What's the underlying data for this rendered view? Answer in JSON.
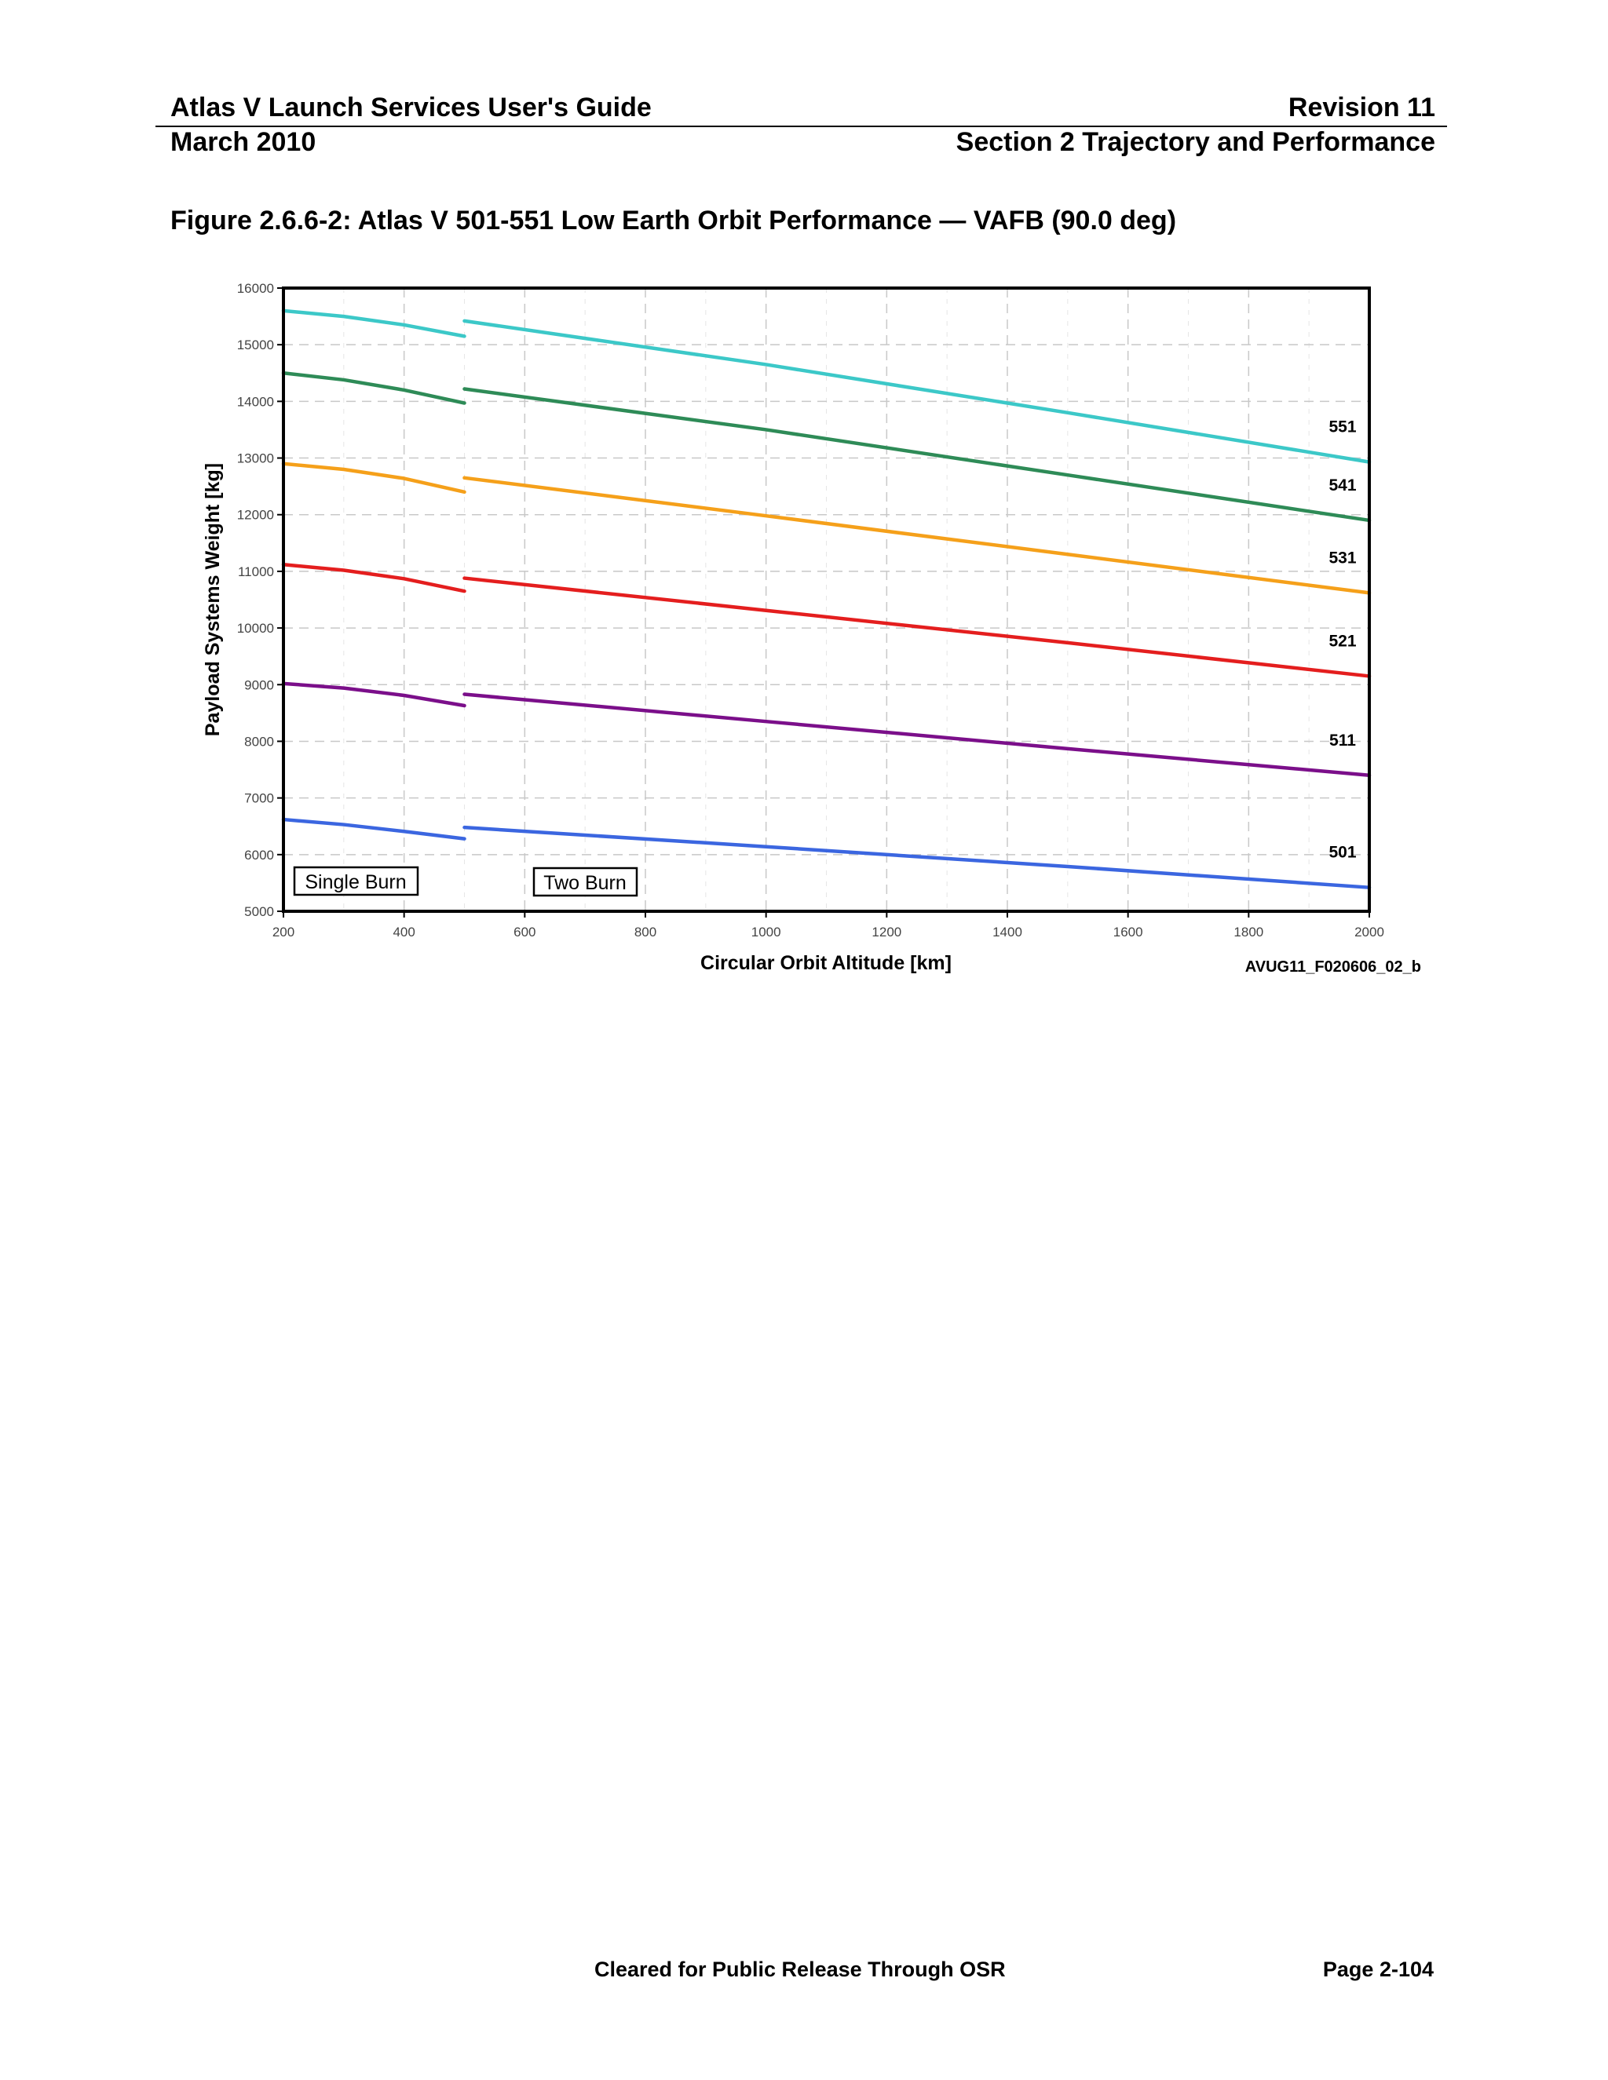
{
  "header": {
    "doc_title": "Atlas V Launch Services User's Guide",
    "revision": "Revision 11",
    "date": "March 2010",
    "section": "Section 2 Trajectory and Performance"
  },
  "figure": {
    "title": "Figure 2.6.6-2: Atlas V 501-551 Low Earth Orbit Performance — VAFB (90.0 deg)",
    "id": "AVUG11_F020606_02_b"
  },
  "footer": {
    "release": "Cleared for Public Release Through OSR",
    "page": "Page 2-104"
  },
  "chart_data": {
    "type": "line",
    "title": "",
    "xlabel": "Circular Orbit Altitude [km]",
    "ylabel": "Payload Systems Weight [kg]",
    "xlim": [
      200,
      2000
    ],
    "ylim": [
      5000,
      16000
    ],
    "xticks": [
      200,
      400,
      600,
      800,
      1000,
      1200,
      1400,
      1600,
      1800,
      2000
    ],
    "yticks": [
      5000,
      6000,
      7000,
      8000,
      9000,
      10000,
      11000,
      12000,
      13000,
      14000,
      15000,
      16000
    ],
    "grid": true,
    "annotations": [
      "Single Burn",
      "Two Burn"
    ],
    "series": [
      {
        "name": "551",
        "color": "#3cc8c8",
        "segments": [
          {
            "x": [
              200,
              300,
              400,
              500
            ],
            "y": [
              15600,
              15500,
              15350,
              15150
            ]
          },
          {
            "x": [
              500,
              1000,
              1500,
              2000
            ],
            "y": [
              15420,
              14650,
              13800,
              12930
            ]
          }
        ]
      },
      {
        "name": "541",
        "color": "#2e8b57",
        "segments": [
          {
            "x": [
              200,
              300,
              400,
              500
            ],
            "y": [
              14500,
              14380,
              14200,
              13970
            ]
          },
          {
            "x": [
              500,
              1000,
              1500,
              2000
            ],
            "y": [
              14220,
              13500,
              12700,
              11900
            ]
          }
        ]
      },
      {
        "name": "531",
        "color": "#f5a01a",
        "segments": [
          {
            "x": [
              200,
              300,
              400,
              500
            ],
            "y": [
              12900,
              12800,
              12640,
              12400
            ]
          },
          {
            "x": [
              500,
              1000,
              1500,
              2000
            ],
            "y": [
              12650,
              11980,
              11300,
              10620
            ]
          }
        ]
      },
      {
        "name": "521",
        "color": "#e41e1e",
        "segments": [
          {
            "x": [
              200,
              300,
              400,
              500
            ],
            "y": [
              11120,
              11020,
              10870,
              10650
            ]
          },
          {
            "x": [
              500,
              1000,
              1500,
              2000
            ],
            "y": [
              10880,
              10310,
              9740,
              9150
            ]
          }
        ]
      },
      {
        "name": "511",
        "color": "#7b0f8a",
        "segments": [
          {
            "x": [
              200,
              300,
              400,
              500
            ],
            "y": [
              9020,
              8940,
              8810,
              8630
            ]
          },
          {
            "x": [
              500,
              1000,
              1500,
              2000
            ],
            "y": [
              8830,
              8350,
              7870,
              7400
            ]
          }
        ]
      },
      {
        "name": "501",
        "color": "#3b66e0",
        "segments": [
          {
            "x": [
              200,
              300,
              400,
              500
            ],
            "y": [
              6620,
              6530,
              6410,
              6280
            ]
          },
          {
            "x": [
              500,
              1000,
              1500,
              2000
            ],
            "y": [
              6480,
              6140,
              5790,
              5420
            ]
          }
        ]
      }
    ]
  }
}
